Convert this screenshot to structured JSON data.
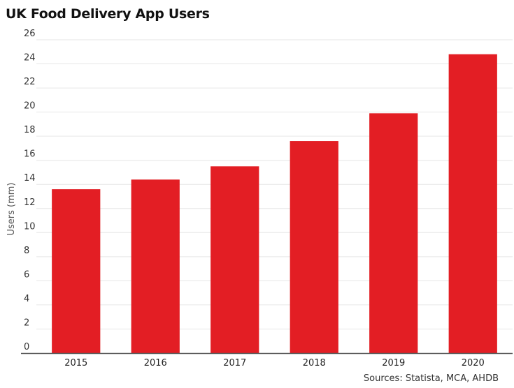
{
  "chart_data": {
    "type": "bar",
    "title": "UK Food Delivery App Users",
    "source": "Sources: Statista, MCA, AHDB",
    "xlabel": "",
    "ylabel": "Users (mm)",
    "categories": [
      "2015",
      "2016",
      "2017",
      "2018",
      "2019",
      "2020"
    ],
    "values": [
      13.6,
      14.4,
      15.5,
      17.6,
      19.9,
      24.8
    ],
    "ylim": [
      0,
      26
    ],
    "yticks": [
      0,
      2,
      4,
      6,
      8,
      10,
      12,
      14,
      16,
      18,
      20,
      22,
      24,
      26
    ],
    "grid": true,
    "legend": "none",
    "bar_color": "#e31e24",
    "grid_color": "#e6e6e6",
    "axis_color": "#555555"
  }
}
